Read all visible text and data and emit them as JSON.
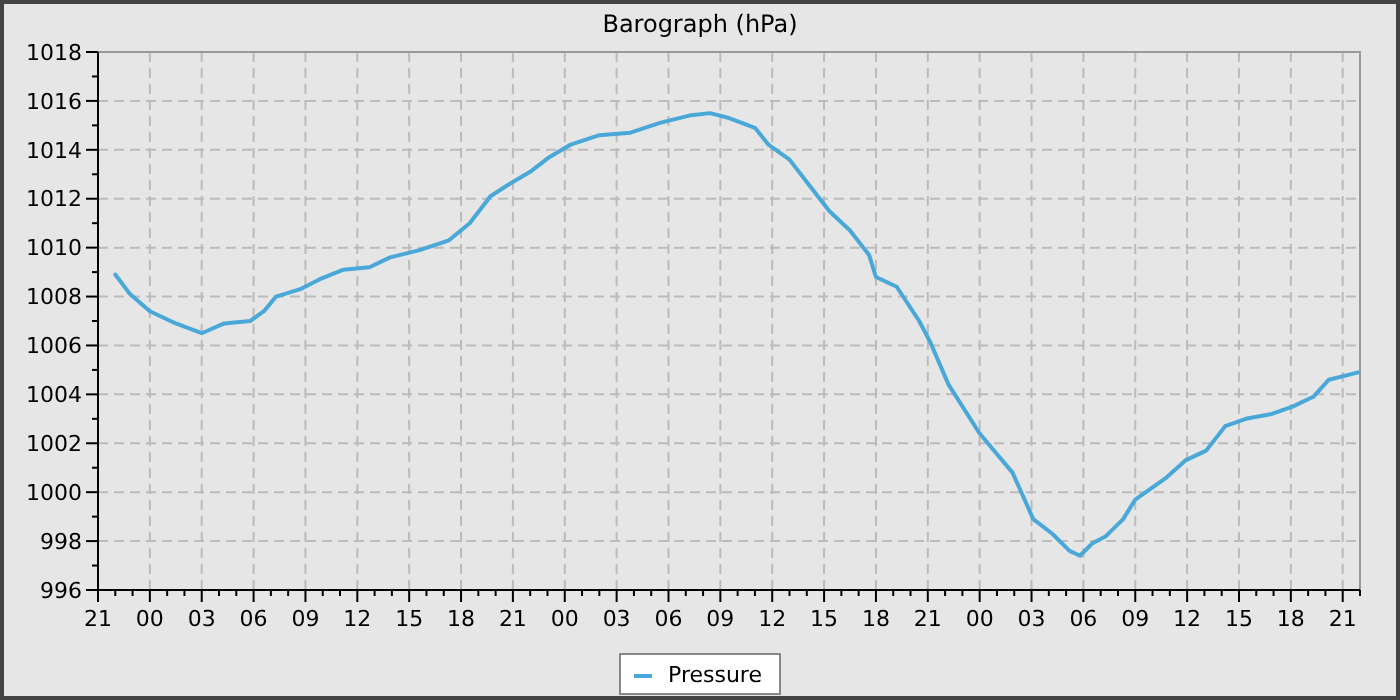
{
  "chart_data": {
    "type": "line",
    "title": "Barograph (hPa)",
    "x": [
      "2000-01-01T22:00",
      "2000-01-01T22:51",
      "2000-01-02T00:00",
      "2000-01-02T01:30",
      "2000-01-02T03:00",
      "2000-01-02T04:18",
      "2000-01-02T05:48",
      "2000-01-02T06:36",
      "2000-01-02T07:18",
      "2000-01-02T08:42",
      "2000-01-02T09:48",
      "2000-01-02T11:12",
      "2000-01-02T12:42",
      "2000-01-02T13:54",
      "2000-01-02T15:36",
      "2000-01-02T17:18",
      "2000-01-02T18:30",
      "2000-01-02T19:42",
      "2000-01-02T20:48",
      "2000-01-02T22:00",
      "2000-01-02T23:06",
      "2000-01-03T00:18",
      "2000-01-03T02:00",
      "2000-01-03T03:48",
      "2000-01-03T05:30",
      "2000-01-03T07:12",
      "2000-01-03T08:24",
      "2000-01-03T09:30",
      "2000-01-03T11:00",
      "2000-01-03T11:48",
      "2000-01-03T13:00",
      "2000-01-03T14:12",
      "2000-01-03T15:18",
      "2000-01-03T16:30",
      "2000-01-03T17:36",
      "2000-01-03T18:00",
      "2000-01-03T19:12",
      "2000-01-03T20:30",
      "2000-01-03T21:06",
      "2000-01-03T22:12",
      "2000-01-04T00:00",
      "2000-01-04T01:54",
      "2000-01-04T03:06",
      "2000-01-04T04:12",
      "2000-01-04T05:12",
      "2000-01-04T05:48",
      "2000-01-04T06:30",
      "2000-01-04T07:18",
      "2000-01-04T08:18",
      "2000-01-04T09:00",
      "2000-01-04T10:48",
      "2000-01-04T11:54",
      "2000-01-04T13:06",
      "2000-01-04T14:12",
      "2000-01-04T15:24",
      "2000-01-04T16:54",
      "2000-01-04T18:06",
      "2000-01-04T19:18",
      "2000-01-04T20:12",
      "2000-01-04T21:54"
    ],
    "series": [
      {
        "name": "Pressure",
        "color": "#4aa8d8",
        "values": [
          1008.9,
          1008.1,
          1007.4,
          1006.9,
          1006.5,
          1006.9,
          1007.0,
          1007.4,
          1008.0,
          1008.3,
          1008.7,
          1009.1,
          1009.2,
          1009.6,
          1009.9,
          1010.3,
          1011.0,
          1012.1,
          1012.6,
          1013.1,
          1013.7,
          1014.2,
          1014.6,
          1014.7,
          1015.1,
          1015.4,
          1015.5,
          1015.3,
          1014.9,
          1014.2,
          1013.6,
          1012.5,
          1011.5,
          1010.7,
          1009.7,
          1008.8,
          1008.4,
          1007.0,
          1006.2,
          1004.4,
          1002.4,
          1000.8,
          998.9,
          998.3,
          997.6,
          997.4,
          997.9,
          998.2,
          998.9,
          999.7,
          1000.6,
          1001.3,
          1001.7,
          1002.7,
          1003.0,
          1003.2,
          1003.5,
          1003.9,
          1004.6,
          1004.9
        ]
      }
    ],
    "xlim": [
      "2000-01-01T21:00",
      "2000-01-04T22:00"
    ],
    "xticks": [
      {
        "value": "2000-01-01T21:00",
        "label": "21"
      },
      {
        "value": "2000-01-01T22:00",
        "label": null
      },
      {
        "value": "2000-01-01T23:00",
        "label": null
      },
      {
        "value": "2000-01-02T00:00",
        "label": "00"
      },
      {
        "value": "2000-01-02T01:00",
        "label": null
      },
      {
        "value": "2000-01-02T02:00",
        "label": null
      },
      {
        "value": "2000-01-02T03:00",
        "label": "03"
      },
      {
        "value": "2000-01-02T04:00",
        "label": null
      },
      {
        "value": "2000-01-02T05:00",
        "label": null
      },
      {
        "value": "2000-01-02T06:00",
        "label": "06"
      },
      {
        "value": "2000-01-02T07:00",
        "label": null
      },
      {
        "value": "2000-01-02T08:00",
        "label": null
      },
      {
        "value": "2000-01-02T09:00",
        "label": "09"
      },
      {
        "value": "2000-01-02T10:00",
        "label": null
      },
      {
        "value": "2000-01-02T11:00",
        "label": null
      },
      {
        "value": "2000-01-02T12:00",
        "label": "12"
      },
      {
        "value": "2000-01-02T13:00",
        "label": null
      },
      {
        "value": "2000-01-02T14:00",
        "label": null
      },
      {
        "value": "2000-01-02T15:00",
        "label": "15"
      },
      {
        "value": "2000-01-02T16:00",
        "label": null
      },
      {
        "value": "2000-01-02T17:00",
        "label": null
      },
      {
        "value": "2000-01-02T18:00",
        "label": "18"
      },
      {
        "value": "2000-01-02T19:00",
        "label": null
      },
      {
        "value": "2000-01-02T20:00",
        "label": null
      },
      {
        "value": "2000-01-02T21:00",
        "label": "21"
      },
      {
        "value": "2000-01-02T22:00",
        "label": null
      },
      {
        "value": "2000-01-02T23:00",
        "label": null
      },
      {
        "value": "2000-01-03T00:00",
        "label": "00"
      },
      {
        "value": "2000-01-03T01:00",
        "label": null
      },
      {
        "value": "2000-01-03T02:00",
        "label": null
      },
      {
        "value": "2000-01-03T03:00",
        "label": "03"
      },
      {
        "value": "2000-01-03T04:00",
        "label": null
      },
      {
        "value": "2000-01-03T05:00",
        "label": null
      },
      {
        "value": "2000-01-03T06:00",
        "label": "06"
      },
      {
        "value": "2000-01-03T07:00",
        "label": null
      },
      {
        "value": "2000-01-03T08:00",
        "label": null
      },
      {
        "value": "2000-01-03T09:00",
        "label": "09"
      },
      {
        "value": "2000-01-03T10:00",
        "label": null
      },
      {
        "value": "2000-01-03T11:00",
        "label": null
      },
      {
        "value": "2000-01-03T12:00",
        "label": "12"
      },
      {
        "value": "2000-01-03T13:00",
        "label": null
      },
      {
        "value": "2000-01-03T14:00",
        "label": null
      },
      {
        "value": "2000-01-03T15:00",
        "label": "15"
      },
      {
        "value": "2000-01-03T16:00",
        "label": null
      },
      {
        "value": "2000-01-03T17:00",
        "label": null
      },
      {
        "value": "2000-01-03T18:00",
        "label": "18"
      },
      {
        "value": "2000-01-03T19:00",
        "label": null
      },
      {
        "value": "2000-01-03T20:00",
        "label": null
      },
      {
        "value": "2000-01-03T21:00",
        "label": "21"
      },
      {
        "value": "2000-01-03T22:00",
        "label": null
      },
      {
        "value": "2000-01-03T23:00",
        "label": null
      },
      {
        "value": "2000-01-04T00:00",
        "label": "00"
      },
      {
        "value": "2000-01-04T01:00",
        "label": null
      },
      {
        "value": "2000-01-04T02:00",
        "label": null
      },
      {
        "value": "2000-01-04T03:00",
        "label": "03"
      },
      {
        "value": "2000-01-04T04:00",
        "label": null
      },
      {
        "value": "2000-01-04T05:00",
        "label": null
      },
      {
        "value": "2000-01-04T06:00",
        "label": "06"
      },
      {
        "value": "2000-01-04T07:00",
        "label": null
      },
      {
        "value": "2000-01-04T08:00",
        "label": null
      },
      {
        "value": "2000-01-04T09:00",
        "label": "09"
      },
      {
        "value": "2000-01-04T10:00",
        "label": null
      },
      {
        "value": "2000-01-04T11:00",
        "label": null
      },
      {
        "value": "2000-01-04T12:00",
        "label": "12"
      },
      {
        "value": "2000-01-04T13:00",
        "label": null
      },
      {
        "value": "2000-01-04T14:00",
        "label": null
      },
      {
        "value": "2000-01-04T15:00",
        "label": "15"
      },
      {
        "value": "2000-01-04T16:00",
        "label": null
      },
      {
        "value": "2000-01-04T17:00",
        "label": null
      },
      {
        "value": "2000-01-04T18:00",
        "label": "18"
      },
      {
        "value": "2000-01-04T19:00",
        "label": null
      },
      {
        "value": "2000-01-04T20:00",
        "label": null
      },
      {
        "value": "2000-01-04T21:00",
        "label": "21"
      },
      {
        "value": "2000-01-04T22:00",
        "label": null
      }
    ],
    "ylim": [
      996,
      1018
    ],
    "yticks": [
      996,
      {
        "value": 997,
        "label": null
      },
      998,
      {
        "value": 999,
        "label": null
      },
      1000,
      {
        "value": 1001,
        "label": null
      },
      1002,
      {
        "value": 1003,
        "label": null
      },
      1004,
      {
        "value": 1005,
        "label": null
      },
      1006,
      {
        "value": 1007,
        "label": null
      },
      1008,
      {
        "value": 1009,
        "label": null
      },
      1010,
      {
        "value": 1011,
        "label": null
      },
      1012,
      {
        "value": 1013,
        "label": null
      },
      1014,
      {
        "value": 1015,
        "label": null
      },
      1016,
      {
        "value": 1017,
        "label": null
      },
      1018
    ],
    "grid": true,
    "legend": "bottom",
    "marker": "none",
    "line_style": "solid"
  }
}
